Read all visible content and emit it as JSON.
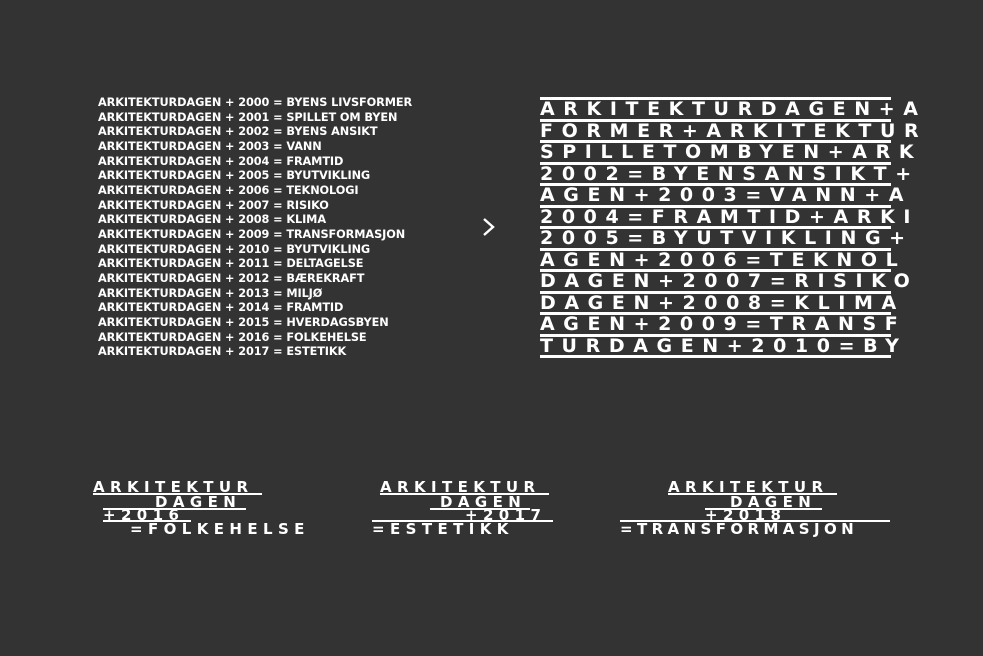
{
  "list": [
    "ARKITEKTURDAGEN + 2000 = BYENS LIVSFORMER",
    "ARKITEKTURDAGEN + 2001 = SPILLET OM BYEN",
    "ARKITEKTURDAGEN + 2002 = BYENS ANSIKT",
    "ARKITEKTURDAGEN + 2003 = VANN",
    "ARKITEKTURDAGEN + 2004 = FRAMTID",
    "ARKITEKTURDAGEN + 2005 = BYUTVIKLING",
    "ARKITEKTURDAGEN + 2006 = TEKNOLOGI",
    "ARKITEKTURDAGEN + 2007 = RISIKO",
    "ARKITEKTURDAGEN + 2008 = KLIMA",
    "ARKITEKTURDAGEN + 2009 = TRANSFORMASJON",
    "ARKITEKTURDAGEN + 2010 = BYUTVIKLING",
    "ARKITEKTURDAGEN + 2011 = DELTAGELSE",
    "ARKITEKTURDAGEN + 2012 = BÆREKRAFT",
    "ARKITEKTURDAGEN + 2013 = MILJØ",
    "ARKITEKTURDAGEN + 2014 = FRAMTID",
    "ARKITEKTURDAGEN + 2015 = HVERDAGSBYEN",
    "ARKITEKTURDAGEN + 2016 = FOLKEHELSE",
    "ARKITEKTURDAGEN + 2017 = ESTETIKK"
  ],
  "arrow_icon": "chevron-right-icon",
  "grid_rows": [
    "ARKITEKTURDAGEN+A",
    "FORMER+ARKITEKTUR",
    "SPILLETOMBYEN+ARK",
    "2002=BYENSANSIKT+",
    "AGEN+2003=VANN+A",
    "2004=FRAMTID+ARKI",
    "2005=BYUTVIKLING+",
    "AGEN+2006=TEKNOL",
    "DAGEN+2007=RISIKO",
    "DAGEN+2008=KLIMA",
    "AGEN+2009=TRANSF",
    "TURDAGEN+2010=BY"
  ],
  "logos": [
    {
      "line1": "ARKITEKTUR",
      "line2": "DAGEN",
      "year": "+2016",
      "theme": "=FOLKEHELSE"
    },
    {
      "line1": "ARKITEKTUR",
      "line2": "DAGEN",
      "year": "+2017",
      "theme": "=ESTETIKK"
    },
    {
      "line1": "ARKITEKTUR",
      "line2": "DAGEN",
      "year": "+2018",
      "theme": "=TRANSFORMASJON"
    }
  ],
  "colors": {
    "background": "#333333",
    "foreground": "#ffffff"
  }
}
